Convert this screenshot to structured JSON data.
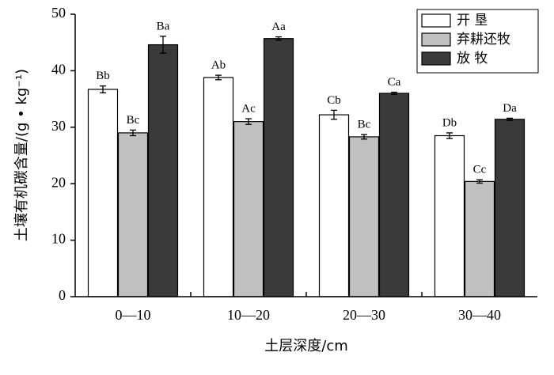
{
  "chart_data": {
    "type": "bar",
    "y_label": "土壤有机碳含量/(g • kg⁻¹)",
    "x_label": "土层深度/cm",
    "categories": [
      "0—10",
      "10—20",
      "20—30",
      "30—40"
    ],
    "series": [
      {
        "name": "开 垦",
        "color": "#ffffff",
        "values": [
          36.7,
          38.8,
          32.2,
          28.5
        ],
        "errors": [
          0.6,
          0.4,
          0.8,
          0.5
        ],
        "annotations": [
          "Bb",
          "Ab",
          "Cb",
          "Db"
        ]
      },
      {
        "name": "弃耕还牧",
        "color": "#c0c0c0",
        "values": [
          29.0,
          31.0,
          28.3,
          20.4
        ],
        "errors": [
          0.5,
          0.5,
          0.4,
          0.3
        ],
        "annotations": [
          "Bc",
          "Ac",
          "Bc",
          "Cc"
        ]
      },
      {
        "name": "放 牧",
        "color": "#3a3a3a",
        "values": [
          44.6,
          45.7,
          36.0,
          31.4
        ],
        "errors": [
          1.5,
          0.3,
          0.2,
          0.2
        ],
        "annotations": [
          "Ba",
          "Aa",
          "Ca",
          "Da"
        ]
      }
    ],
    "ylim": [
      0,
      50
    ],
    "yticks": [
      0,
      10,
      20,
      30,
      40,
      50
    ],
    "legend": "top-right"
  }
}
